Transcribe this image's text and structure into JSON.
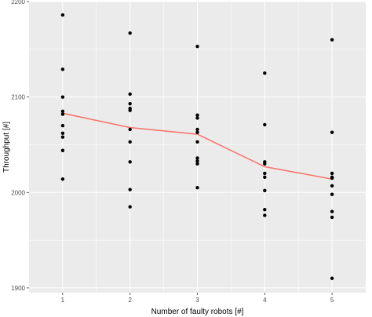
{
  "chart_data": {
    "type": "scatter",
    "xlabel": "Number of faulty robots [#]",
    "ylabel": "Throughput [#]",
    "x_ticks": [
      "1",
      "2",
      "3",
      "4",
      "5"
    ],
    "y_ticks": [
      "1900",
      "2000",
      "2100",
      "2200"
    ],
    "xlim": [
      0.5,
      5.5
    ],
    "ylim": [
      1895,
      2200
    ],
    "grid": true,
    "legend": "none",
    "colors": {
      "panel_background": "#ebebeb",
      "grid": "#ffffff",
      "points": "#000000",
      "trend_line": "#f8766d"
    },
    "points": [
      {
        "x": 1,
        "y": 2186
      },
      {
        "x": 1,
        "y": 2129
      },
      {
        "x": 1,
        "y": 2100
      },
      {
        "x": 1,
        "y": 2085
      },
      {
        "x": 1,
        "y": 2082
      },
      {
        "x": 1,
        "y": 2070
      },
      {
        "x": 1,
        "y": 2062
      },
      {
        "x": 1,
        "y": 2058
      },
      {
        "x": 1,
        "y": 2044
      },
      {
        "x": 1,
        "y": 2014
      },
      {
        "x": 2,
        "y": 2167
      },
      {
        "x": 2,
        "y": 2103
      },
      {
        "x": 2,
        "y": 2093
      },
      {
        "x": 2,
        "y": 2088
      },
      {
        "x": 2,
        "y": 2086
      },
      {
        "x": 2,
        "y": 2066
      },
      {
        "x": 2,
        "y": 2053
      },
      {
        "x": 2,
        "y": 2032
      },
      {
        "x": 2,
        "y": 2003
      },
      {
        "x": 2,
        "y": 1985
      },
      {
        "x": 3,
        "y": 2153
      },
      {
        "x": 3,
        "y": 2081
      },
      {
        "x": 3,
        "y": 2078
      },
      {
        "x": 3,
        "y": 2066
      },
      {
        "x": 3,
        "y": 2063
      },
      {
        "x": 3,
        "y": 2053
      },
      {
        "x": 3,
        "y": 2036
      },
      {
        "x": 3,
        "y": 2033
      },
      {
        "x": 3,
        "y": 2030
      },
      {
        "x": 3,
        "y": 2005
      },
      {
        "x": 4,
        "y": 2125
      },
      {
        "x": 4,
        "y": 2071
      },
      {
        "x": 4,
        "y": 2032
      },
      {
        "x": 4,
        "y": 2030
      },
      {
        "x": 4,
        "y": 2020
      },
      {
        "x": 4,
        "y": 2016
      },
      {
        "x": 4,
        "y": 2002
      },
      {
        "x": 4,
        "y": 1982
      },
      {
        "x": 4,
        "y": 1976
      },
      {
        "x": 5,
        "y": 2160
      },
      {
        "x": 5,
        "y": 2063
      },
      {
        "x": 5,
        "y": 2020
      },
      {
        "x": 5,
        "y": 2016
      },
      {
        "x": 5,
        "y": 2015
      },
      {
        "x": 5,
        "y": 2007
      },
      {
        "x": 5,
        "y": 1998
      },
      {
        "x": 5,
        "y": 1980
      },
      {
        "x": 5,
        "y": 1974
      },
      {
        "x": 5,
        "y": 1910
      }
    ],
    "series": [
      {
        "x": [
          1,
          2,
          3,
          4,
          5
        ],
        "values": [
          2083,
          2068,
          2061,
          2027,
          2014
        ]
      }
    ]
  }
}
